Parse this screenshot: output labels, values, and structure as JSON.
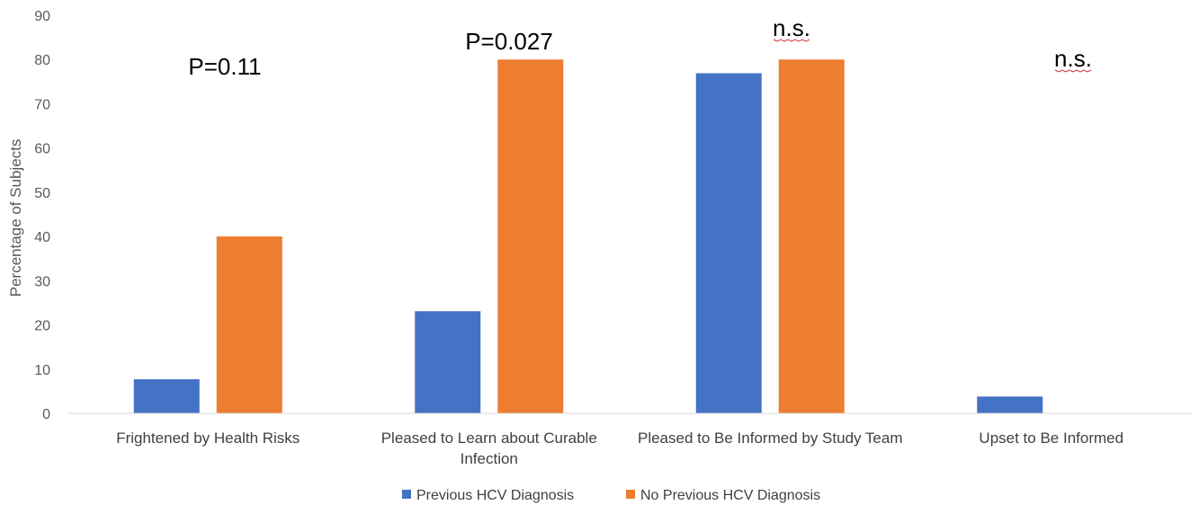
{
  "chart_data": {
    "type": "bar",
    "categories": [
      [
        "Frightened by Health Risks"
      ],
      [
        "Pleased to Learn about Curable",
        "Infection"
      ],
      [
        "Pleased to Be Informed by Study Team"
      ],
      [
        "Upset to Be Informed"
      ]
    ],
    "series": [
      {
        "name": "Previous HCV Diagnosis",
        "values": [
          7.7,
          23.1,
          76.9,
          3.8
        ],
        "color": "#4472c4"
      },
      {
        "name": "No Previous HCV Diagnosis",
        "values": [
          40,
          80,
          80,
          0
        ],
        "color": "#ed7d31"
      }
    ],
    "annotations": [
      "P=0.11",
      "P=0.027",
      "n.s.",
      "n.s."
    ],
    "ylabel": "Percentage of Subjects",
    "ylim": [
      0,
      90
    ],
    "yticks": [
      0,
      10,
      20,
      30,
      40,
      50,
      60,
      70,
      80,
      90
    ],
    "grid": false,
    "legend_position": "bottom"
  }
}
